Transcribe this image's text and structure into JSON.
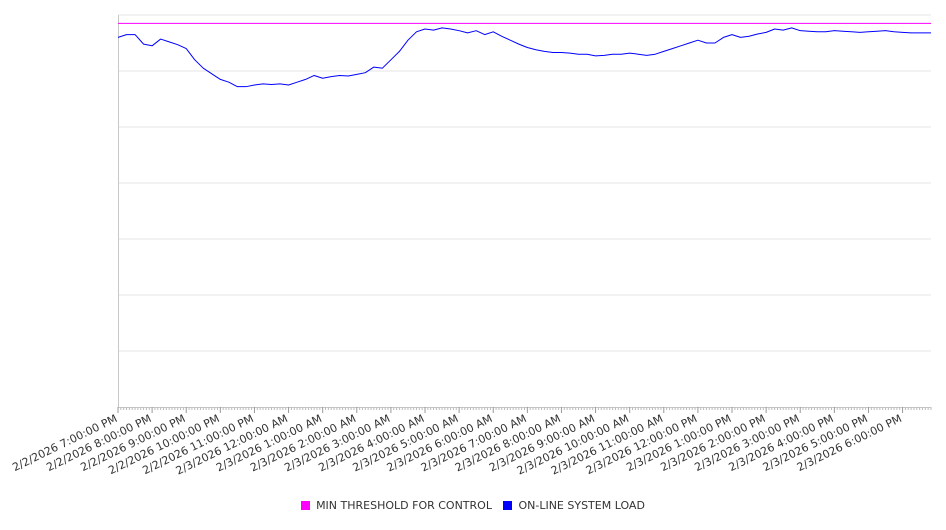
{
  "chart_data": {
    "type": "line",
    "title": "",
    "xlabel": "",
    "ylabel": "",
    "ylim": [
      0,
      7
    ],
    "y_gridlines": [
      0,
      1,
      2,
      3,
      4,
      5,
      6,
      7
    ],
    "y_tick_labels_shown": false,
    "grid": "horizontal",
    "legend_placement": "bottom-center",
    "x_tick_labels": [
      "2/2/2026 7:00:00 PM",
      "2/2/2026 8:00:00 PM",
      "2/2/2026 9:00:00 PM",
      "2/2/2026 10:00:00 PM",
      "2/2/2026 11:00:00 PM",
      "2/3/2026 12:00:00 AM",
      "2/3/2026 1:00:00 AM",
      "2/3/2026 2:00:00 AM",
      "2/3/2026 3:00:00 AM",
      "2/3/2026 4:00:00 AM",
      "2/3/2026 5:00:00 AM",
      "2/3/2026 6:00:00 AM",
      "2/3/2026 7:00:00 AM",
      "2/3/2026 8:00:00 AM",
      "2/3/2026 9:00:00 AM",
      "2/3/2026 10:00:00 AM",
      "2/3/2026 11:00:00 AM",
      "2/3/2026 12:00:00 PM",
      "2/3/2026 1:00:00 PM",
      "2/3/2026 2:00:00 PM",
      "2/3/2026 3:00:00 PM",
      "2/3/2026 4:00:00 PM",
      "2/3/2026 5:00:00 PM",
      "2/3/2026 6:00:00 PM"
    ],
    "x_range": [
      "2/2/2026 7:00:00 PM",
      "2/3/2026 6:50:00 PM"
    ],
    "series": [
      {
        "name": "MIN THRESHOLD FOR CONTROL",
        "color": "#ff00ff",
        "x": [
          "2/2/2026 7:00:00 PM",
          "2/3/2026 6:50:00 PM"
        ],
        "values": [
          6.85,
          6.85
        ]
      },
      {
        "name": "ON-LINE SYSTEM LOAD",
        "color": "#0000ff",
        "x": [
          "2/2/2026 7:00:00 PM",
          "2/2/2026 7:15:00 PM",
          "2/2/2026 7:30:00 PM",
          "2/2/2026 7:45:00 PM",
          "2/2/2026 8:00:00 PM",
          "2/2/2026 8:15:00 PM",
          "2/2/2026 8:30:00 PM",
          "2/2/2026 8:45:00 PM",
          "2/2/2026 9:00:00 PM",
          "2/2/2026 9:15:00 PM",
          "2/2/2026 9:30:00 PM",
          "2/2/2026 9:45:00 PM",
          "2/2/2026 10:00:00 PM",
          "2/2/2026 10:15:00 PM",
          "2/2/2026 10:30:00 PM",
          "2/2/2026 10:45:00 PM",
          "2/2/2026 11:00:00 PM",
          "2/2/2026 11:15:00 PM",
          "2/2/2026 11:30:00 PM",
          "2/2/2026 11:45:00 PM",
          "2/3/2026 12:00:00 AM",
          "2/3/2026 12:15:00 AM",
          "2/3/2026 12:30:00 AM",
          "2/3/2026 12:45:00 AM",
          "2/3/2026 1:00:00 AM",
          "2/3/2026 1:15:00 AM",
          "2/3/2026 1:30:00 AM",
          "2/3/2026 1:45:00 AM",
          "2/3/2026 2:00:00 AM",
          "2/3/2026 2:15:00 AM",
          "2/3/2026 2:30:00 AM",
          "2/3/2026 2:45:00 AM",
          "2/3/2026 3:00:00 AM",
          "2/3/2026 3:15:00 AM",
          "2/3/2026 3:30:00 AM",
          "2/3/2026 3:45:00 AM",
          "2/3/2026 4:00:00 AM",
          "2/3/2026 4:15:00 AM",
          "2/3/2026 4:30:00 AM",
          "2/3/2026 4:45:00 AM",
          "2/3/2026 5:00:00 AM",
          "2/3/2026 5:15:00 AM",
          "2/3/2026 5:30:00 AM",
          "2/3/2026 5:45:00 AM",
          "2/3/2026 6:00:00 AM",
          "2/3/2026 6:15:00 AM",
          "2/3/2026 6:30:00 AM",
          "2/3/2026 6:45:00 AM",
          "2/3/2026 7:00:00 AM",
          "2/3/2026 7:15:00 AM",
          "2/3/2026 7:30:00 AM",
          "2/3/2026 7:45:00 AM",
          "2/3/2026 8:00:00 AM",
          "2/3/2026 8:15:00 AM",
          "2/3/2026 8:30:00 AM",
          "2/3/2026 8:45:00 AM",
          "2/3/2026 9:00:00 AM",
          "2/3/2026 9:15:00 AM",
          "2/3/2026 9:30:00 AM",
          "2/3/2026 9:45:00 AM",
          "2/3/2026 10:00:00 AM",
          "2/3/2026 10:15:00 AM",
          "2/3/2026 10:30:00 AM",
          "2/3/2026 10:45:00 AM",
          "2/3/2026 11:00:00 AM",
          "2/3/2026 11:15:00 AM",
          "2/3/2026 11:30:00 AM",
          "2/3/2026 11:45:00 AM",
          "2/3/2026 12:00:00 PM",
          "2/3/2026 12:15:00 PM",
          "2/3/2026 12:30:00 PM",
          "2/3/2026 12:45:00 PM",
          "2/3/2026 1:00:00 PM",
          "2/3/2026 1:15:00 PM",
          "2/3/2026 1:30:00 PM",
          "2/3/2026 1:45:00 PM",
          "2/3/2026 2:00:00 PM",
          "2/3/2026 2:15:00 PM",
          "2/3/2026 2:30:00 PM",
          "2/3/2026 2:45:00 PM",
          "2/3/2026 3:00:00 PM",
          "2/3/2026 3:15:00 PM",
          "2/3/2026 3:30:00 PM",
          "2/3/2026 3:45:00 PM",
          "2/3/2026 4:00:00 PM",
          "2/3/2026 4:15:00 PM",
          "2/3/2026 4:30:00 PM",
          "2/3/2026 4:45:00 PM",
          "2/3/2026 5:00:00 PM",
          "2/3/2026 5:15:00 PM",
          "2/3/2026 5:30:00 PM",
          "2/3/2026 5:45:00 PM",
          "2/3/2026 6:00:00 PM",
          "2/3/2026 6:15:00 PM",
          "2/3/2026 6:30:00 PM",
          "2/3/2026 6:50:00 PM"
        ],
        "values": [
          6.6,
          6.65,
          6.65,
          6.48,
          6.45,
          6.57,
          6.52,
          6.47,
          6.4,
          6.2,
          6.05,
          5.95,
          5.85,
          5.8,
          5.72,
          5.72,
          5.75,
          5.77,
          5.76,
          5.77,
          5.75,
          5.8,
          5.85,
          5.92,
          5.87,
          5.9,
          5.92,
          5.91,
          5.94,
          5.97,
          6.07,
          6.05,
          6.2,
          6.35,
          6.55,
          6.7,
          6.75,
          6.73,
          6.77,
          6.75,
          6.72,
          6.68,
          6.72,
          6.65,
          6.7,
          6.62,
          6.55,
          6.48,
          6.42,
          6.38,
          6.35,
          6.33,
          6.33,
          6.32,
          6.3,
          6.3,
          6.27,
          6.28,
          6.3,
          6.3,
          6.32,
          6.3,
          6.28,
          6.3,
          6.35,
          6.4,
          6.45,
          6.5,
          6.55,
          6.5,
          6.5,
          6.6,
          6.65,
          6.6,
          6.62,
          6.66,
          6.69,
          6.75,
          6.73,
          6.77,
          6.72,
          6.71,
          6.7,
          6.7,
          6.72,
          6.71,
          6.7,
          6.69,
          6.7,
          6.71,
          6.72,
          6.7,
          6.69,
          6.68,
          6.68,
          6.68
        ]
      }
    ]
  }
}
